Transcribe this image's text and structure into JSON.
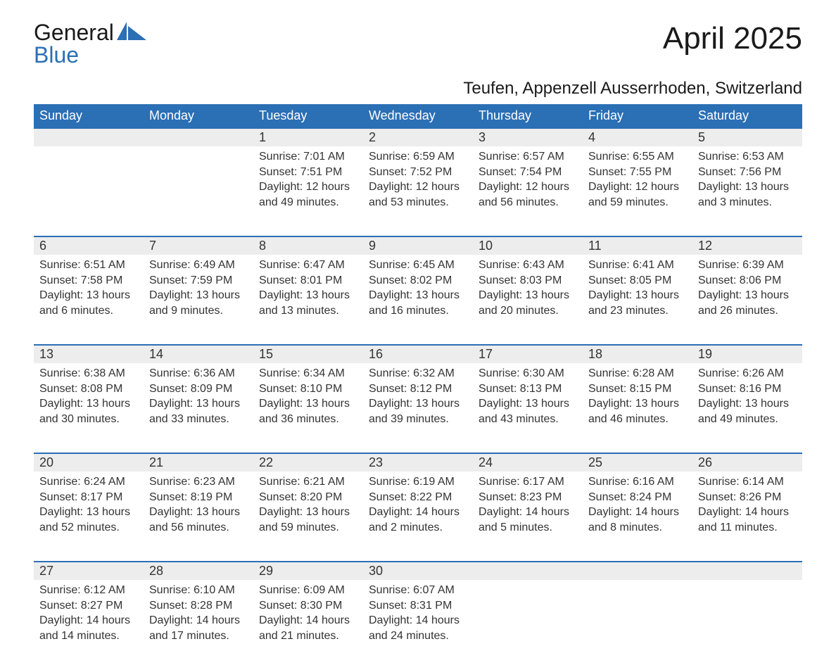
{
  "logo": {
    "word1": "General",
    "word2": "Blue"
  },
  "title": "April 2025",
  "location": "Teufen, Appenzell Ausserrhoden, Switzerland",
  "colors": {
    "header_bg": "#2b6fb5",
    "header_text": "#ffffff",
    "daynum_bg": "#ededed",
    "row_border": "#2b6fb5",
    "text": "#333333",
    "logo_blue": "#2b6fb5",
    "page_bg": "#ffffff"
  },
  "fonts": {
    "title_pt": 44,
    "location_pt": 24,
    "header_pt": 18,
    "daynum_pt": 18,
    "cell_pt": 16,
    "logo_pt": 32
  },
  "day_headers": [
    "Sunday",
    "Monday",
    "Tuesday",
    "Wednesday",
    "Thursday",
    "Friday",
    "Saturday"
  ],
  "weeks": [
    [
      null,
      null,
      {
        "n": "1",
        "sr": "Sunrise: 7:01 AM",
        "ss": "Sunset: 7:51 PM",
        "dl1": "Daylight: 12 hours",
        "dl2": "and 49 minutes."
      },
      {
        "n": "2",
        "sr": "Sunrise: 6:59 AM",
        "ss": "Sunset: 7:52 PM",
        "dl1": "Daylight: 12 hours",
        "dl2": "and 53 minutes."
      },
      {
        "n": "3",
        "sr": "Sunrise: 6:57 AM",
        "ss": "Sunset: 7:54 PM",
        "dl1": "Daylight: 12 hours",
        "dl2": "and 56 minutes."
      },
      {
        "n": "4",
        "sr": "Sunrise: 6:55 AM",
        "ss": "Sunset: 7:55 PM",
        "dl1": "Daylight: 12 hours",
        "dl2": "and 59 minutes."
      },
      {
        "n": "5",
        "sr": "Sunrise: 6:53 AM",
        "ss": "Sunset: 7:56 PM",
        "dl1": "Daylight: 13 hours",
        "dl2": "and 3 minutes."
      }
    ],
    [
      {
        "n": "6",
        "sr": "Sunrise: 6:51 AM",
        "ss": "Sunset: 7:58 PM",
        "dl1": "Daylight: 13 hours",
        "dl2": "and 6 minutes."
      },
      {
        "n": "7",
        "sr": "Sunrise: 6:49 AM",
        "ss": "Sunset: 7:59 PM",
        "dl1": "Daylight: 13 hours",
        "dl2": "and 9 minutes."
      },
      {
        "n": "8",
        "sr": "Sunrise: 6:47 AM",
        "ss": "Sunset: 8:01 PM",
        "dl1": "Daylight: 13 hours",
        "dl2": "and 13 minutes."
      },
      {
        "n": "9",
        "sr": "Sunrise: 6:45 AM",
        "ss": "Sunset: 8:02 PM",
        "dl1": "Daylight: 13 hours",
        "dl2": "and 16 minutes."
      },
      {
        "n": "10",
        "sr": "Sunrise: 6:43 AM",
        "ss": "Sunset: 8:03 PM",
        "dl1": "Daylight: 13 hours",
        "dl2": "and 20 minutes."
      },
      {
        "n": "11",
        "sr": "Sunrise: 6:41 AM",
        "ss": "Sunset: 8:05 PM",
        "dl1": "Daylight: 13 hours",
        "dl2": "and 23 minutes."
      },
      {
        "n": "12",
        "sr": "Sunrise: 6:39 AM",
        "ss": "Sunset: 8:06 PM",
        "dl1": "Daylight: 13 hours",
        "dl2": "and 26 minutes."
      }
    ],
    [
      {
        "n": "13",
        "sr": "Sunrise: 6:38 AM",
        "ss": "Sunset: 8:08 PM",
        "dl1": "Daylight: 13 hours",
        "dl2": "and 30 minutes."
      },
      {
        "n": "14",
        "sr": "Sunrise: 6:36 AM",
        "ss": "Sunset: 8:09 PM",
        "dl1": "Daylight: 13 hours",
        "dl2": "and 33 minutes."
      },
      {
        "n": "15",
        "sr": "Sunrise: 6:34 AM",
        "ss": "Sunset: 8:10 PM",
        "dl1": "Daylight: 13 hours",
        "dl2": "and 36 minutes."
      },
      {
        "n": "16",
        "sr": "Sunrise: 6:32 AM",
        "ss": "Sunset: 8:12 PM",
        "dl1": "Daylight: 13 hours",
        "dl2": "and 39 minutes."
      },
      {
        "n": "17",
        "sr": "Sunrise: 6:30 AM",
        "ss": "Sunset: 8:13 PM",
        "dl1": "Daylight: 13 hours",
        "dl2": "and 43 minutes."
      },
      {
        "n": "18",
        "sr": "Sunrise: 6:28 AM",
        "ss": "Sunset: 8:15 PM",
        "dl1": "Daylight: 13 hours",
        "dl2": "and 46 minutes."
      },
      {
        "n": "19",
        "sr": "Sunrise: 6:26 AM",
        "ss": "Sunset: 8:16 PM",
        "dl1": "Daylight: 13 hours",
        "dl2": "and 49 minutes."
      }
    ],
    [
      {
        "n": "20",
        "sr": "Sunrise: 6:24 AM",
        "ss": "Sunset: 8:17 PM",
        "dl1": "Daylight: 13 hours",
        "dl2": "and 52 minutes."
      },
      {
        "n": "21",
        "sr": "Sunrise: 6:23 AM",
        "ss": "Sunset: 8:19 PM",
        "dl1": "Daylight: 13 hours",
        "dl2": "and 56 minutes."
      },
      {
        "n": "22",
        "sr": "Sunrise: 6:21 AM",
        "ss": "Sunset: 8:20 PM",
        "dl1": "Daylight: 13 hours",
        "dl2": "and 59 minutes."
      },
      {
        "n": "23",
        "sr": "Sunrise: 6:19 AM",
        "ss": "Sunset: 8:22 PM",
        "dl1": "Daylight: 14 hours",
        "dl2": "and 2 minutes."
      },
      {
        "n": "24",
        "sr": "Sunrise: 6:17 AM",
        "ss": "Sunset: 8:23 PM",
        "dl1": "Daylight: 14 hours",
        "dl2": "and 5 minutes."
      },
      {
        "n": "25",
        "sr": "Sunrise: 6:16 AM",
        "ss": "Sunset: 8:24 PM",
        "dl1": "Daylight: 14 hours",
        "dl2": "and 8 minutes."
      },
      {
        "n": "26",
        "sr": "Sunrise: 6:14 AM",
        "ss": "Sunset: 8:26 PM",
        "dl1": "Daylight: 14 hours",
        "dl2": "and 11 minutes."
      }
    ],
    [
      {
        "n": "27",
        "sr": "Sunrise: 6:12 AM",
        "ss": "Sunset: 8:27 PM",
        "dl1": "Daylight: 14 hours",
        "dl2": "and 14 minutes."
      },
      {
        "n": "28",
        "sr": "Sunrise: 6:10 AM",
        "ss": "Sunset: 8:28 PM",
        "dl1": "Daylight: 14 hours",
        "dl2": "and 17 minutes."
      },
      {
        "n": "29",
        "sr": "Sunrise: 6:09 AM",
        "ss": "Sunset: 8:30 PM",
        "dl1": "Daylight: 14 hours",
        "dl2": "and 21 minutes."
      },
      {
        "n": "30",
        "sr": "Sunrise: 6:07 AM",
        "ss": "Sunset: 8:31 PM",
        "dl1": "Daylight: 14 hours",
        "dl2": "and 24 minutes."
      },
      null,
      null,
      null
    ]
  ]
}
